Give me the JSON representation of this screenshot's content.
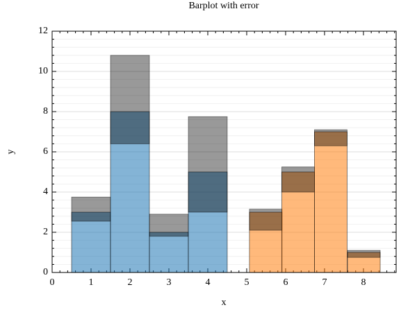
{
  "chart_data": {
    "type": "bar_error",
    "title": "Barplot with error",
    "xlabel": "x",
    "ylabel": "y",
    "xlim": [
      0,
      8.84
    ],
    "ylim": [
      0,
      12
    ],
    "xticks": [
      0,
      1,
      2,
      3,
      4,
      5,
      6,
      7,
      8
    ],
    "yticks": [
      0,
      2,
      4,
      6,
      8,
      10,
      12
    ],
    "minor_divisions": 5,
    "grid": true,
    "error_color": "#000000",
    "series": [
      {
        "color": "#1f77b4",
        "width": 1,
        "x": [
          1,
          2,
          3,
          4
        ],
        "values": [
          3,
          8,
          2,
          5
        ],
        "err_low": [
          0.45,
          1.6,
          0.2,
          2.0
        ],
        "err_high": [
          0.75,
          2.8,
          0.9,
          2.75
        ]
      },
      {
        "color": "#ff7f0e",
        "width": 0.84,
        "x": [
          5.49,
          6.32,
          7.16,
          8.01
        ],
        "values": [
          3,
          5,
          7,
          1
        ],
        "err_low": [
          0.9,
          1.0,
          0.7,
          0.25
        ],
        "err_high": [
          0.15,
          0.25,
          0.1,
          0.1
        ]
      }
    ]
  }
}
